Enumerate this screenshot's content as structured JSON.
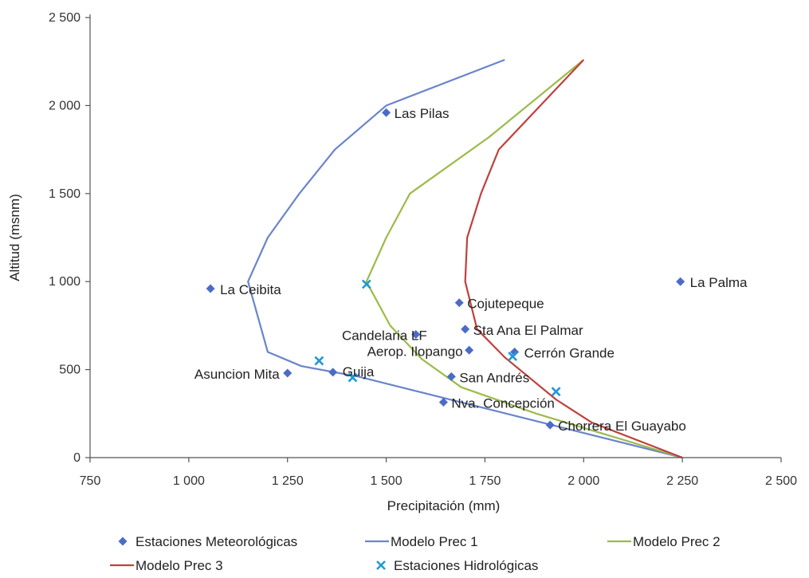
{
  "chart_data": {
    "type": "line",
    "title": "",
    "xlabel": "Precipitación (mm)",
    "ylabel": "Altitud (msnm)",
    "xlim": [
      750,
      2500
    ],
    "ylim": [
      0,
      2500
    ],
    "xticks": [
      750,
      1000,
      1250,
      1500,
      1750,
      2000,
      2250,
      2500
    ],
    "xtick_labels": [
      "750",
      "1 000",
      "1 250",
      "1 500",
      "1 750",
      "2 000",
      "2 250",
      "2 500"
    ],
    "yticks": [
      0,
      500,
      1000,
      1500,
      2000,
      2500
    ],
    "ytick_labels": [
      "0",
      "500",
      "1 000",
      "1 500",
      "2 000",
      "2 500"
    ],
    "grid": false,
    "legend_position": "bottom",
    "colors": {
      "meteo": "#4a6cc8",
      "prec1": "#6a84cc",
      "prec2": "#9bbb4a",
      "prec3": "#c0403c",
      "hidro": "#1f9ad6",
      "axis": "#555555"
    },
    "series": [
      {
        "name": "Estaciones Meteorológicas",
        "kind": "scatter-diamond",
        "points": [
          {
            "label": "Las Pilas",
            "x": 1500,
            "y": 1960
          },
          {
            "label": "La Ceibita",
            "x": 1055,
            "y": 960
          },
          {
            "label": "La Palma",
            "x": 2245,
            "y": 1000
          },
          {
            "label": "Cojutepeque",
            "x": 1685,
            "y": 880
          },
          {
            "label": "Sta Ana El Palmar",
            "x": 1700,
            "y": 730
          },
          {
            "label": "Candelaria LF",
            "x": 1575,
            "y": 700
          },
          {
            "label": "Aerop. Ilopango",
            "x": 1710,
            "y": 610
          },
          {
            "label": "Cerrón Grande",
            "x": 1825,
            "y": 600
          },
          {
            "label": "Asuncion Mita",
            "x": 1250,
            "y": 480
          },
          {
            "label": "Guija",
            "x": 1365,
            "y": 485
          },
          {
            "label": "San Andrés",
            "x": 1665,
            "y": 460
          },
          {
            "label": "Nva. Concepción",
            "x": 1645,
            "y": 315
          },
          {
            "label": "Chorrera El Guayabo",
            "x": 1915,
            "y": 185
          }
        ]
      },
      {
        "name": "Modelo Prec 1",
        "kind": "line",
        "x": [
          2250,
          1430,
          1285,
          1200,
          1150,
          1200,
          1280,
          1370,
          1500,
          1800
        ],
        "y": [
          0,
          460,
          520,
          600,
          1000,
          1250,
          1500,
          1750,
          2000,
          2260
        ]
      },
      {
        "name": "Modelo Prec 2",
        "kind": "line",
        "x": [
          2250,
          1880,
          1690,
          1590,
          1510,
          1450,
          1500,
          1560,
          1760,
          2000
        ],
        "y": [
          0,
          250,
          400,
          560,
          750,
          1000,
          1250,
          1500,
          1820,
          2260
        ]
      },
      {
        "name": "Modelo Prec 3",
        "kind": "line",
        "x": [
          2250,
          2020,
          1930,
          1800,
          1730,
          1700,
          1705,
          1740,
          1785,
          2000
        ],
        "y": [
          0,
          200,
          330,
          570,
          730,
          1000,
          1250,
          1500,
          1750,
          2260
        ]
      },
      {
        "name": "Estaciones Hidrológicas",
        "kind": "scatter-x",
        "points": [
          {
            "x": 1450,
            "y": 985
          },
          {
            "x": 1330,
            "y": 550
          },
          {
            "x": 1415,
            "y": 455
          },
          {
            "x": 1820,
            "y": 575
          },
          {
            "x": 1930,
            "y": 375
          }
        ]
      }
    ]
  }
}
